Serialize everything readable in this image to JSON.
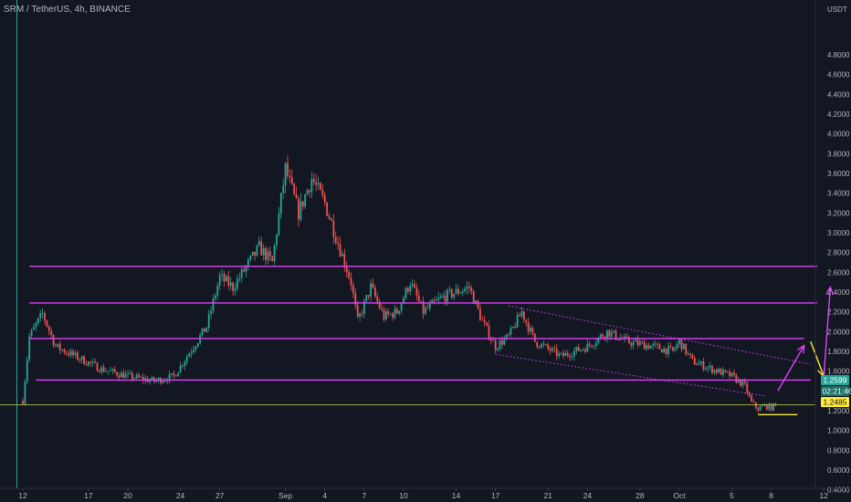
{
  "header": {
    "title": "SRM / TetherUS, 4h, BINANCE",
    "currency": "USDT"
  },
  "colors": {
    "background": "#131722",
    "up": "#26a69a",
    "down": "#ef5350",
    "level": "#e040fb",
    "price_line": "#c6d84a",
    "annotation_yellow": "#ffeb3b",
    "badge_green": "#26a69a",
    "badge_teal": "#1b6f66",
    "badge_yellow": "#ffeb3b"
  },
  "badges": {
    "last_price": "1.2599",
    "countdown": "02:21:46",
    "low_price": "1.2485"
  },
  "chart_data": {
    "type": "candlestick",
    "title": "SRM / TetherUS, 4h, BINANCE",
    "ylim": [
      0.2,
      4.95
    ],
    "y_ticks": [
      "0.4000",
      "0.6000",
      "0.8000",
      "1.0000",
      "1.2000",
      "1.4000",
      "1.6000",
      "1.8000",
      "2.0000",
      "2.2000",
      "2.4000",
      "2.6000",
      "2.8000",
      "3.0000",
      "3.2000",
      "3.4000",
      "3.6000",
      "3.8000",
      "4.0000",
      "4.2000",
      "4.4000",
      "4.6000",
      "4.8000"
    ],
    "x_ticks": [
      "12",
      "17",
      "20",
      "24",
      "27",
      "Sep",
      "4",
      "7",
      "10",
      "14",
      "17",
      "21",
      "24",
      "28",
      "Oct",
      "5",
      "8",
      "12"
    ],
    "grid": false,
    "price_waypoints": [
      [
        "Aug 12 00:00",
        1.3
      ],
      [
        "Aug 12 12:00",
        1.95
      ],
      [
        "Aug 13 12:00",
        2.18
      ],
      [
        "Aug 14 12:00",
        1.85
      ],
      [
        "Aug 16 00:00",
        1.75
      ],
      [
        "Aug 18 00:00",
        1.62
      ],
      [
        "Aug 20 00:00",
        1.55
      ],
      [
        "Aug 22 00:00",
        1.5
      ],
      [
        "Aug 23 12:00",
        1.55
      ],
      [
        "Aug 25 00:00",
        1.85
      ],
      [
        "Aug 26 00:00",
        2.05
      ],
      [
        "Aug 27 00:00",
        2.55
      ],
      [
        "Aug 28 00:00",
        2.45
      ],
      [
        "Aug 30 00:00",
        2.85
      ],
      [
        "Aug 31 00:00",
        2.7
      ],
      [
        "Sep 01 00:00",
        3.65
      ],
      [
        "Sep 02 00:00",
        3.2
      ],
      [
        "Sep 03 00:00",
        3.55
      ],
      [
        "Sep 04 00:00",
        3.3
      ],
      [
        "Sep 05 00:00",
        2.9
      ],
      [
        "Sep 06 00:00",
        2.5
      ],
      [
        "Sep 06 12:00",
        2.1
      ],
      [
        "Sep 07 12:00",
        2.45
      ],
      [
        "Sep 08 12:00",
        2.15
      ],
      [
        "Sep 09 12:00",
        2.2
      ],
      [
        "Sep 10 12:00",
        2.5
      ],
      [
        "Sep 11 12:00",
        2.2
      ],
      [
        "Sep 13 00:00",
        2.35
      ],
      [
        "Sep 14 00:00",
        2.4
      ],
      [
        "Sep 15 00:00",
        2.45
      ],
      [
        "Sep 16 00:00",
        2.1
      ],
      [
        "Sep 17 00:00",
        1.85
      ],
      [
        "Sep 18 00:00",
        1.95
      ],
      [
        "Sep 19 00:00",
        2.2
      ],
      [
        "Sep 20 00:00",
        1.9
      ],
      [
        "Sep 22 00:00",
        1.75
      ],
      [
        "Sep 24 00:00",
        1.85
      ],
      [
        "Sep 25 12:00",
        2.0
      ],
      [
        "Sep 27 00:00",
        1.9
      ],
      [
        "Sep 29 00:00",
        1.85
      ],
      [
        "Sep 30 12:00",
        1.8
      ],
      [
        "Oct 01 00:00",
        1.9
      ],
      [
        "Oct 02 00:00",
        1.7
      ],
      [
        "Oct 03 12:00",
        1.62
      ],
      [
        "Oct 05 00:00",
        1.55
      ],
      [
        "Oct 06 00:00",
        1.45
      ],
      [
        "Oct 06 12:00",
        1.28
      ],
      [
        "Oct 07 00:00",
        1.22
      ],
      [
        "Oct 07 12:00",
        1.25
      ],
      [
        "Oct 08 00:00",
        1.23
      ],
      [
        "Oct 08 08:00",
        1.26
      ]
    ],
    "current_price": 1.2599,
    "recent_low": 1.2485,
    "horizontal_levels": [
      {
        "price": 2.66,
        "from": "Aug 12 12:00",
        "to": "Oct 11 12:00"
      },
      {
        "price": 2.29,
        "from": "Aug 12 12:00",
        "to": "Oct 11 12:00"
      },
      {
        "price": 1.93,
        "from": "Aug 12 12:00",
        "to": "Oct 10 12:00"
      },
      {
        "price": 1.51,
        "from": "Aug 13 00:00",
        "to": "Oct 11 00:00"
      }
    ],
    "channel": {
      "upper": [
        [
          "Sep 18 00:00",
          2.26
        ],
        [
          "Oct 11 00:00",
          1.67
        ]
      ],
      "lower": [
        [
          "Sep 17 00:00",
          1.77
        ],
        [
          "Oct 07 12:00",
          1.35
        ]
      ]
    },
    "low_marker": {
      "price": 1.16,
      "from": "Oct 07 00:00",
      "to": "Oct 10 00:00"
    },
    "arrows": [
      {
        "color": "magenta",
        "from": [
          "Oct 08 12:00",
          1.4
        ],
        "to": [
          "Oct 10 12:00",
          1.86
        ]
      },
      {
        "color": "yellow",
        "from": [
          "Oct 11 00:00",
          1.9
        ],
        "to": [
          "Oct 12 00:00",
          1.55
        ]
      },
      {
        "color": "magenta",
        "from": [
          "Oct 12 00:00",
          1.54
        ],
        "to": [
          "Oct 12 12:00",
          2.45
        ]
      }
    ]
  }
}
